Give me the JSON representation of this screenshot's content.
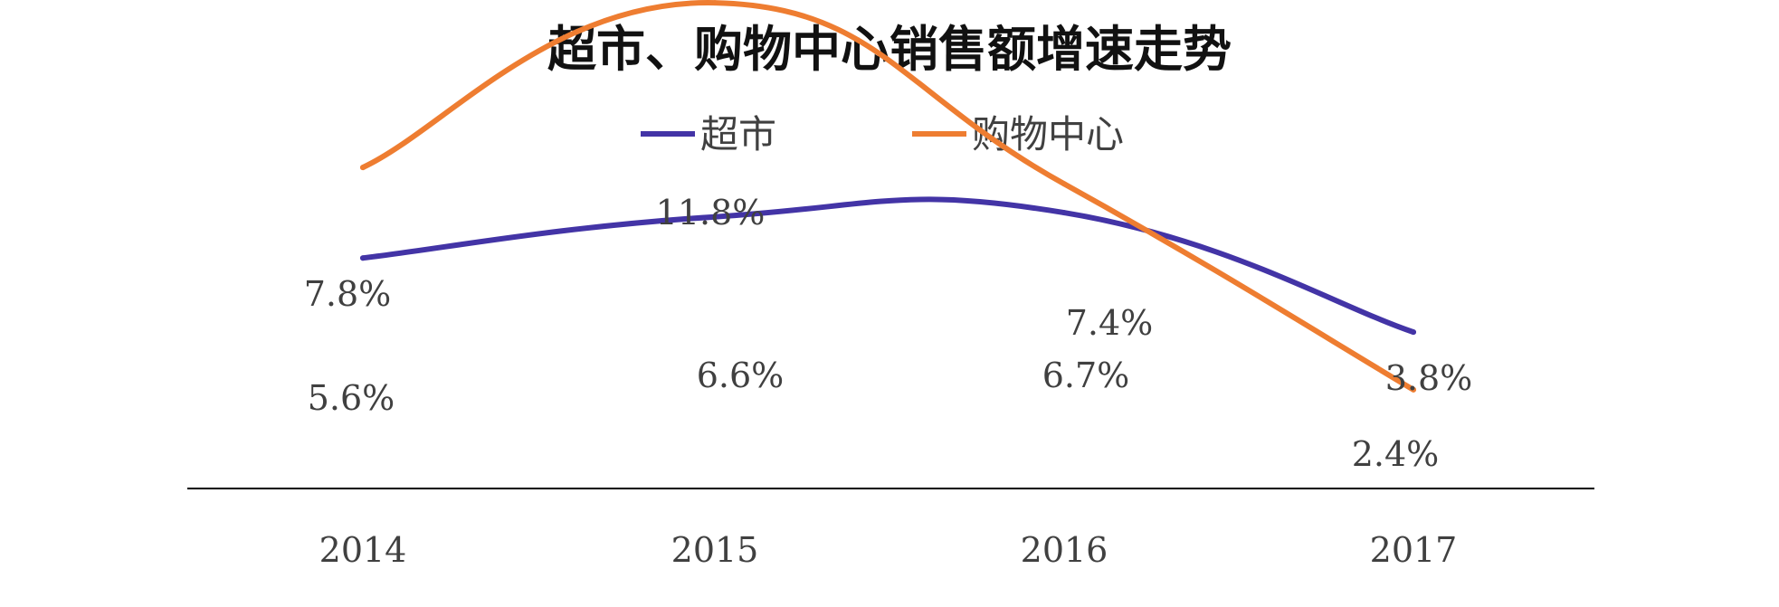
{
  "chart_data": {
    "type": "line",
    "title": "超市、购物中心销售额增速走势",
    "categories": [
      "2014",
      "2015",
      "2016",
      "2017"
    ],
    "series": [
      {
        "name": "超市",
        "color": "#4334a6",
        "values": [
          5.6,
          6.6,
          6.7,
          3.8
        ],
        "labels": [
          "5.6%",
          "6.6%",
          "6.7%",
          "3.8%"
        ]
      },
      {
        "name": "购物中心",
        "color": "#ee7d31",
        "values": [
          7.8,
          11.8,
          7.4,
          2.4
        ],
        "labels": [
          "7.8%",
          "11.8%",
          "7.4%",
          "2.4%"
        ]
      }
    ],
    "ylim": [
      0,
      13
    ],
    "smooth": true,
    "legend": "top",
    "grid": false
  }
}
